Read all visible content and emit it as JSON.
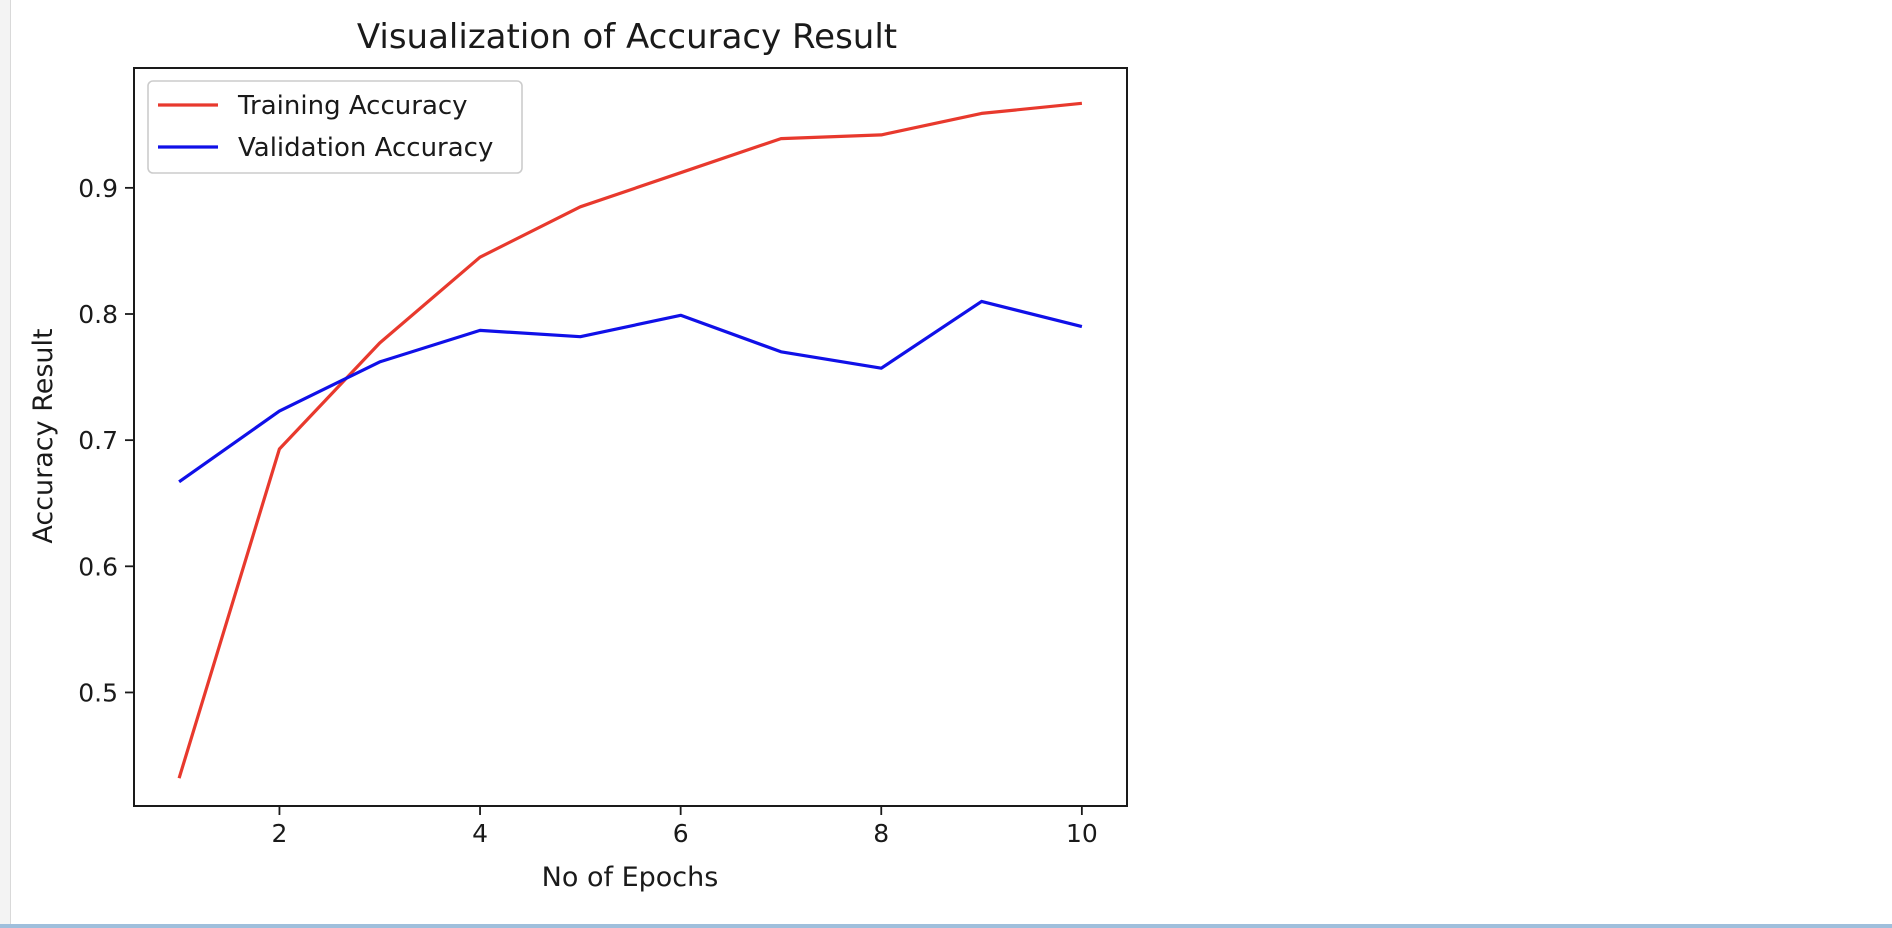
{
  "chart_data": {
    "type": "line",
    "title": "Visualization of Accuracy Result",
    "xlabel": "No of Epochs",
    "ylabel": "Accuracy Result",
    "xlim": [
      0.55,
      10.45
    ],
    "ylim": [
      0.41,
      0.995
    ],
    "xticks": [
      2,
      4,
      6,
      8,
      10
    ],
    "yticks": [
      0.5,
      0.6,
      0.7,
      0.8,
      0.9
    ],
    "grid": false,
    "legend_position": "upper-left",
    "x": [
      1,
      2,
      3,
      4,
      5,
      6,
      7,
      8,
      9,
      10
    ],
    "series": [
      {
        "name": "Training Accuracy",
        "color": "#e8392d",
        "values": [
          0.432,
          0.693,
          0.777,
          0.845,
          0.885,
          0.912,
          0.939,
          0.942,
          0.959,
          0.967
        ]
      },
      {
        "name": "Validation Accuracy",
        "color": "#1010e8",
        "values": [
          0.667,
          0.723,
          0.762,
          0.787,
          0.782,
          0.799,
          0.77,
          0.757,
          0.81,
          0.79
        ]
      }
    ]
  }
}
